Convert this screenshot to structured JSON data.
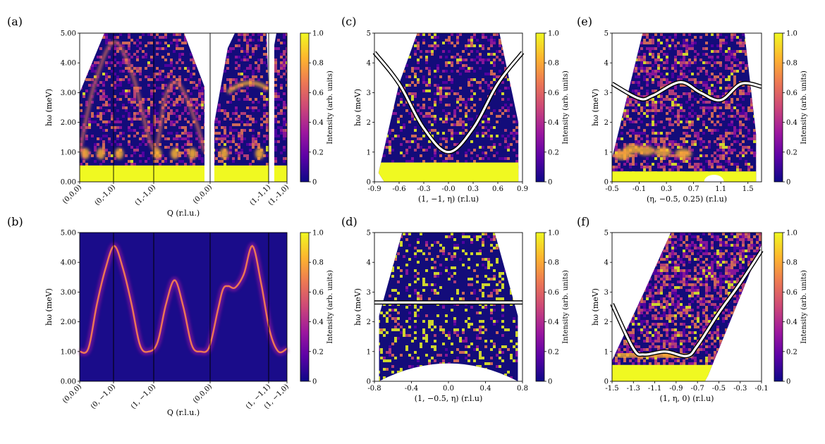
{
  "colors": {
    "background": "#130c7a",
    "colormap": [
      "#0d0887",
      "#5c01a6",
      "#9c179e",
      "#cc4778",
      "#ed7953",
      "#fdb42f",
      "#f0f921"
    ]
  },
  "colorbar": {
    "label": "Intensity (arb. units)",
    "ticks": [
      "0",
      "0.2",
      "0.4",
      "0.6",
      "0.8",
      "1.0"
    ]
  },
  "chart_data": [
    {
      "panel": "(a)",
      "type": "heatmap",
      "ylabel": "hω (meV)",
      "xlabel": "Q (r.l.u.)",
      "ylim": [
        0,
        5
      ],
      "yticks": [
        "0.00",
        "1.00",
        "2.00",
        "3.00",
        "4.00",
        "5.00"
      ],
      "xticks": [
        "(0,0,0)",
        "(0,-1,0)",
        "(1,-1,0)",
        "(0,0,0)",
        "(1,-1,1)",
        "(1,-1,0)"
      ],
      "features": "measured inelastic neutron scattering intensity with dispersive magnon branches; maxima near 4.7 meV at (0,-1,0) and 3.3 meV near (1,-1,1); elastic/background band below ~1.2 meV"
    },
    {
      "panel": "(b)",
      "type": "heatmap",
      "ylabel": "hω (meV)",
      "xlabel": "Q (r.l.u.)",
      "ylim": [
        0,
        5
      ],
      "yticks": [
        "0.00",
        "1.00",
        "2.00",
        "3.00",
        "4.00",
        "5.00"
      ],
      "xticks": [
        "(0,0,0)",
        "(0, −1,0)",
        "(1, −1,0)",
        "(0,0,0)",
        "(1, −1,1)",
        "(1, −1,0)"
      ],
      "dispersion": {
        "q": [
          0,
          0.5,
          1.0,
          1.5,
          2.0,
          2.5,
          3.0,
          3.5,
          4.0,
          4.5,
          5.0,
          5.5,
          6.0,
          6.5,
          7.0,
          7.5,
          8.0,
          8.3,
          8.6,
          9.0,
          9.5,
          10.0,
          10.5,
          11.0,
          11.5,
          12.0
        ],
        "energy": [
          1.0,
          1.1,
          2.6,
          3.8,
          4.55,
          3.8,
          2.6,
          1.2,
          1.0,
          1.3,
          2.6,
          3.4,
          2.5,
          1.2,
          1.0,
          1.15,
          2.4,
          3.1,
          3.2,
          3.15,
          3.6,
          4.55,
          3.3,
          1.7,
          1.0,
          1.1
        ]
      }
    },
    {
      "panel": "(c)",
      "type": "heatmap",
      "ylabel": "hω (meV)",
      "xlabel": "(1, −1, η) (r.l.u)",
      "xlim": [
        -0.9,
        0.9
      ],
      "ylim": [
        0,
        5
      ],
      "xticks": [
        "-0.9",
        "-0.6",
        "-0.3",
        "-0.0",
        "0.3",
        "0.6",
        "0.9"
      ],
      "yticks": [
        "0",
        "1",
        "2",
        "3",
        "4",
        "5"
      ],
      "dispersion": {
        "x": [
          -0.9,
          -0.6,
          -0.3,
          0.0,
          0.3,
          0.6,
          0.9
        ],
        "energy": [
          4.35,
          3.3,
          1.8,
          1.0,
          1.8,
          3.3,
          4.35
        ]
      }
    },
    {
      "panel": "(d)",
      "type": "heatmap",
      "ylabel": "hω (meV)",
      "xlabel": "(1, −0.5, η) (r.l.u)",
      "xlim": [
        -0.8,
        0.8
      ],
      "ylim": [
        0,
        5
      ],
      "xticks": [
        "-0.8",
        "-0.4",
        "0.0",
        "0.4",
        "0.8"
      ],
      "yticks": [
        "0",
        "1",
        "2",
        "3",
        "4",
        "5"
      ],
      "dispersion": {
        "x": [
          -0.8,
          0.8
        ],
        "energy": [
          2.65,
          2.65
        ]
      }
    },
    {
      "panel": "(e)",
      "type": "heatmap",
      "ylabel": "hω (meV)",
      "xlabel": "(η, −0.5, 0.25) (r.l.u)",
      "xlim": [
        -0.5,
        1.7
      ],
      "ylim": [
        0,
        5
      ],
      "xticks": [
        "-0.5",
        "-0.1",
        "0.3",
        "0.7",
        "1.1",
        "1.5"
      ],
      "yticks": [
        "0",
        "1",
        "2",
        "3",
        "4",
        "5"
      ],
      "dispersion": {
        "x": [
          -0.5,
          -0.1,
          0.1,
          0.5,
          0.8,
          1.1,
          1.4,
          1.7
        ],
        "energy": [
          3.3,
          2.8,
          2.9,
          3.35,
          3.0,
          2.75,
          3.3,
          3.2
        ]
      }
    },
    {
      "panel": "(f)",
      "type": "heatmap",
      "ylabel": "hω (meV)",
      "xlabel": "(1, η, 0) (r.l.u)",
      "xlim": [
        -1.5,
        -0.1
      ],
      "ylim": [
        0,
        5
      ],
      "xticks": [
        "-1.5",
        "-1.3",
        "-1.1",
        "-0.9",
        "-0.7",
        "-0.5",
        "-0.3",
        "-0.1"
      ],
      "yticks": [
        "0",
        "1",
        "2",
        "3",
        "4",
        "5"
      ],
      "dispersion": {
        "x": [
          -1.5,
          -1.3,
          -1.2,
          -1.0,
          -0.8,
          -0.7,
          -0.5,
          -0.3,
          -0.1
        ],
        "energy": [
          2.6,
          1.1,
          0.9,
          1.0,
          0.85,
          1.2,
          2.3,
          3.3,
          4.4
        ]
      }
    }
  ]
}
